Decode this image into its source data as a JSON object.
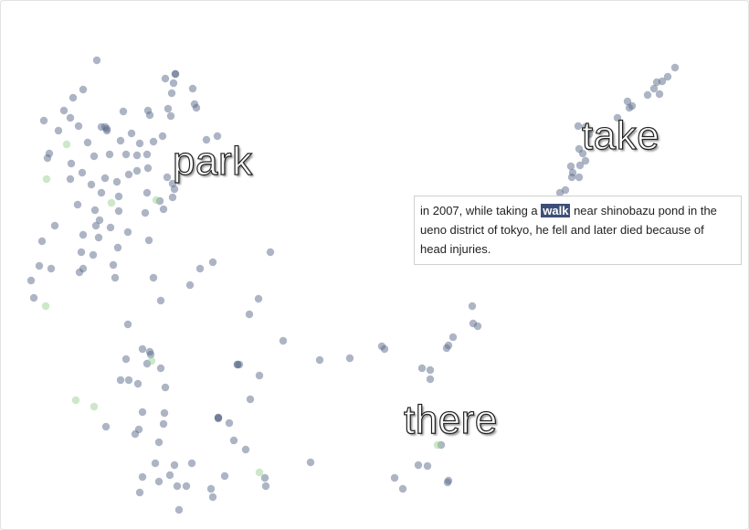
{
  "labels": {
    "park": "park",
    "take": "take",
    "there": "there"
  },
  "tooltip": {
    "before": "in 2007, while taking a ",
    "highlight": "walk",
    "after": " near shinobazu pond in the ueno district of tokyo, he fell and later died because of head injuries."
  },
  "colors": {
    "point": "#5b6b8c",
    "point_highlight": "#9ccf94",
    "word_highlight": "#3d4f78"
  }
}
